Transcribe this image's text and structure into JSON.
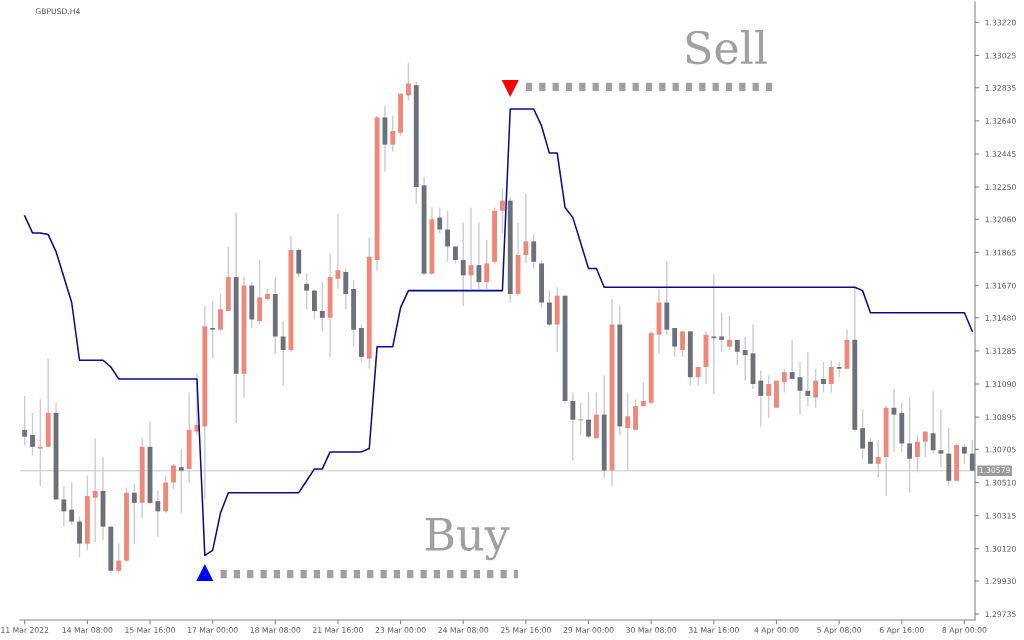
{
  "chart_data": {
    "type": "candlestick",
    "title": "GBPUSD,H4",
    "categories": [
      "11 Mar 2022",
      null,
      null,
      null,
      null,
      null,
      null,
      null,
      "14 Mar 08:00",
      null,
      null,
      null,
      null,
      null,
      null,
      null,
      "15 Mar 16:00",
      null,
      null,
      null,
      null,
      null,
      null,
      null,
      "17 Mar 00:00",
      null,
      null,
      null,
      null,
      null,
      null,
      null,
      "18 Mar 08:00",
      null,
      null,
      null,
      null,
      null,
      null,
      null,
      "21 Mar 16:00",
      null,
      null,
      null,
      null,
      null,
      null,
      null,
      "23 Mar 00:00",
      null,
      null,
      null,
      null,
      null,
      null,
      null,
      "24 Mar 08:00",
      null,
      null,
      null,
      null,
      null,
      null,
      null,
      "25 Mar 16:00",
      null,
      null,
      null,
      null,
      null,
      null,
      null,
      "29 Mar 00:00",
      null,
      null,
      null,
      null,
      null,
      null,
      null,
      "30 Mar 08:00",
      null,
      null,
      null,
      null,
      null,
      null,
      null,
      "31 Mar 16:00",
      null,
      null,
      null,
      null,
      null,
      null,
      null,
      "4 Apr 00:00",
      null,
      null,
      null,
      null,
      null,
      null,
      null,
      "5 Apr 08:00",
      null,
      null,
      null,
      null,
      null,
      null,
      null,
      "6 Apr 16:00",
      null,
      null,
      null,
      null,
      null,
      null,
      null,
      "8 Apr 00:00",
      null
    ],
    "ohlc": [
      [
        1.3082,
        1.3102,
        1.3073,
        1.3078
      ],
      [
        1.3079,
        1.3092,
        1.3067,
        1.3072
      ],
      [
        1.3071,
        1.31,
        1.3049,
        1.3072
      ],
      [
        1.3072,
        1.3124,
        1.3072,
        1.3092
      ],
      [
        1.3092,
        1.3098,
        1.3041,
        1.3041
      ],
      [
        1.3041,
        1.3049,
        1.3025,
        1.3034
      ],
      [
        1.3035,
        1.3051,
        1.3026,
        1.3028
      ],
      [
        1.3028,
        1.3031,
        1.3007,
        1.3015
      ],
      [
        1.3015,
        1.3055,
        1.3011,
        1.3043
      ],
      [
        1.3042,
        1.3077,
        1.3016,
        1.3046
      ],
      [
        1.3046,
        1.3066,
        1.3017,
        1.3025
      ],
      [
        1.3025,
        1.3025,
        1.2998,
        1.2999
      ],
      [
        1.2999,
        1.3015,
        1.2998,
        1.3005
      ],
      [
        1.3005,
        1.3048,
        1.3004,
        1.3045
      ],
      [
        1.3045,
        1.305,
        1.3015,
        1.3039
      ],
      [
        1.3039,
        1.3077,
        1.303,
        1.3072
      ],
      [
        1.3072,
        1.3087,
        1.3038,
        1.3039
      ],
      [
        1.304,
        1.3046,
        1.3019,
        1.3034
      ],
      [
        1.3034,
        1.3055,
        1.3033,
        1.3051
      ],
      [
        1.3051,
        1.3062,
        1.3047,
        1.3061
      ],
      [
        1.306,
        1.3071,
        1.3033,
        1.3058
      ],
      [
        1.3059,
        1.3104,
        1.3051,
        1.3082
      ],
      [
        1.3081,
        1.3115,
        1.3079,
        1.3085
      ],
      [
        1.3084,
        1.3155,
        1.3041,
        1.3143
      ],
      [
        1.3142,
        1.3158,
        1.3124,
        1.3141
      ],
      [
        1.3141,
        1.3162,
        1.314,
        1.3153
      ],
      [
        1.3152,
        1.319,
        1.3152,
        1.3172
      ],
      [
        1.3172,
        1.321,
        1.3086,
        1.3115
      ],
      [
        1.3115,
        1.3172,
        1.3101,
        1.3167
      ],
      [
        1.3167,
        1.3169,
        1.3142,
        1.3147
      ],
      [
        1.3146,
        1.3182,
        1.3144,
        1.316
      ],
      [
        1.3159,
        1.3165,
        1.3158,
        1.3162
      ],
      [
        1.3162,
        1.3172,
        1.3127,
        1.3137
      ],
      [
        1.3137,
        1.3146,
        1.3108,
        1.3129
      ],
      [
        1.3129,
        1.3196,
        1.3128,
        1.3188
      ],
      [
        1.3188,
        1.3189,
        1.3172,
        1.3174
      ],
      [
        1.3168,
        1.3174,
        1.3153,
        1.3164
      ],
      [
        1.3164,
        1.3165,
        1.3147,
        1.3152
      ],
      [
        1.3152,
        1.3169,
        1.314,
        1.3148
      ],
      [
        1.3148,
        1.3186,
        1.3125,
        1.3172
      ],
      [
        1.3171,
        1.3209,
        1.3165,
        1.3176
      ],
      [
        1.3175,
        1.3177,
        1.3153,
        1.3162
      ],
      [
        1.3165,
        1.317,
        1.3131,
        1.3141
      ],
      [
        1.3142,
        1.3144,
        1.3122,
        1.3125
      ],
      [
        1.3124,
        1.3195,
        1.3118,
        1.3184
      ],
      [
        1.3182,
        1.3267,
        1.3176,
        1.3266
      ],
      [
        1.3266,
        1.3273,
        1.3234,
        1.325
      ],
      [
        1.325,
        1.3267,
        1.3246,
        1.3258
      ],
      [
        1.3257,
        1.328,
        1.3255,
        1.328
      ],
      [
        1.3279,
        1.3298,
        1.3276,
        1.3286
      ],
      [
        1.3285,
        1.3287,
        1.3215,
        1.3225
      ],
      [
        1.3226,
        1.3231,
        1.3173,
        1.3174
      ],
      [
        1.3174,
        1.3213,
        1.3173,
        1.3206
      ],
      [
        1.3207,
        1.3213,
        1.3198,
        1.32
      ],
      [
        1.32,
        1.3211,
        1.3181,
        1.319
      ],
      [
        1.319,
        1.319,
        1.318,
        1.3182
      ],
      [
        1.3182,
        1.3204,
        1.3155,
        1.3173
      ],
      [
        1.3173,
        1.3213,
        1.3165,
        1.3179
      ],
      [
        1.3179,
        1.3204,
        1.3165,
        1.3169
      ],
      [
        1.3169,
        1.3194,
        1.3165,
        1.318
      ],
      [
        1.3181,
        1.3213,
        1.318,
        1.3211
      ],
      [
        1.3211,
        1.3224,
        1.3198,
        1.3217
      ],
      [
        1.3217,
        1.3219,
        1.3157,
        1.3162
      ],
      [
        1.3162,
        1.3204,
        1.3161,
        1.3185
      ],
      [
        1.3185,
        1.3221,
        1.318,
        1.3193
      ],
      [
        1.3193,
        1.3197,
        1.3177,
        1.3181
      ],
      [
        1.318,
        1.3182,
        1.3154,
        1.3157
      ],
      [
        1.3157,
        1.3164,
        1.3143,
        1.3144
      ],
      [
        1.3144,
        1.3166,
        1.3128,
        1.3161
      ],
      [
        1.3161,
        1.3161,
        1.3098,
        1.3099
      ],
      [
        1.3099,
        1.3104,
        1.3064,
        1.3088
      ],
      [
        1.30876,
        1.3098,
        1.3079,
        1.30882
      ],
      [
        1.3088,
        1.3104,
        1.3077,
        1.3078
      ],
      [
        1.3077,
        1.3104,
        1.3077,
        1.3091
      ],
      [
        1.3091,
        1.3114,
        1.3054,
        1.3058
      ],
      [
        1.3058,
        1.3159,
        1.3049,
        1.3144
      ],
      [
        1.3144,
        1.3155,
        1.3079,
        1.3084
      ],
      [
        1.3083,
        1.3104,
        1.3058,
        1.309
      ],
      [
        1.3082,
        1.31,
        1.3082,
        1.3096
      ],
      [
        1.3096,
        1.311,
        1.3096,
        1.3099
      ],
      [
        1.3098,
        1.314,
        1.3097,
        1.3139
      ],
      [
        1.3138,
        1.3165,
        1.3127,
        1.3157
      ],
      [
        1.3157,
        1.3181,
        1.3138,
        1.3141
      ],
      [
        1.3142,
        1.3142,
        1.3125,
        1.3131
      ],
      [
        1.3129,
        1.314,
        1.3125,
        1.314
      ],
      [
        1.314,
        1.314,
        1.3108,
        1.3113
      ],
      [
        1.3113,
        1.3119,
        1.3108,
        1.3119
      ],
      [
        1.3119,
        1.314,
        1.3109,
        1.3138
      ],
      [
        1.3137,
        1.3174,
        1.3103,
        1.3136
      ],
      [
        1.3137,
        1.3151,
        1.3128,
        1.3135
      ],
      [
        1.3131,
        1.3149,
        1.3129,
        1.3135
      ],
      [
        1.3135,
        1.3135,
        1.312,
        1.3128
      ],
      [
        1.3129,
        1.3137,
        1.3111,
        1.3126
      ],
      [
        1.3127,
        1.3144,
        1.3106,
        1.3109
      ],
      [
        1.3111,
        1.3117,
        1.3084,
        1.3102
      ],
      [
        1.3102,
        1.3114,
        1.3089,
        1.3109
      ],
      [
        1.3095,
        1.3111,
        1.3095,
        1.3111
      ],
      [
        1.311,
        1.3118,
        1.3104,
        1.3116
      ],
      [
        1.3116,
        1.3135,
        1.3112,
        1.3112
      ],
      [
        1.3113,
        1.3122,
        1.3091,
        1.3105
      ],
      [
        1.3105,
        1.3128,
        1.3096,
        1.3102
      ],
      [
        1.3101,
        1.3118,
        1.3095,
        1.3111
      ],
      [
        1.3112,
        1.3122,
        1.3104,
        1.3109
      ],
      [
        1.3109,
        1.3123,
        1.3104,
        1.3119
      ],
      [
        1.3119,
        1.3122,
        1.3113,
        1.3118
      ],
      [
        1.3118,
        1.3141,
        1.3118,
        1.3135
      ],
      [
        1.3135,
        1.3166,
        1.3081,
        1.3082
      ],
      [
        1.3083,
        1.3094,
        1.3065,
        1.3071
      ],
      [
        1.3075,
        1.3077,
        1.3062,
        1.3062
      ],
      [
        1.3062,
        1.3076,
        1.3054,
        1.3066
      ],
      [
        1.3066,
        1.3096,
        1.3043,
        1.3095
      ],
      [
        1.3095,
        1.3106,
        1.3069,
        1.3091
      ],
      [
        1.3092,
        1.3098,
        1.3069,
        1.3074
      ],
      [
        1.3074,
        1.3101,
        1.3045,
        1.3065
      ],
      [
        1.3066,
        1.3079,
        1.3057,
        1.3075
      ],
      [
        1.3075,
        1.3081,
        1.3066,
        1.3081
      ],
      [
        1.308,
        1.3105,
        1.3068,
        1.307
      ],
      [
        1.307,
        1.3094,
        1.306,
        1.3068
      ],
      [
        1.3068,
        1.3083,
        1.3049,
        1.3052
      ],
      [
        1.3052,
        1.3074,
        1.3052,
        1.3073
      ],
      [
        1.3072,
        1.3074,
        1.3062,
        1.3068
      ],
      [
        1.3068,
        1.3076,
        1.30579,
        1.30579
      ]
    ],
    "colors": [
      "#6c7079",
      "#6c7079",
      "#ef8878",
      "#ef8878",
      "#6c7079",
      "#6c7079",
      "#6c7079",
      "#6c7079",
      "#ef8878",
      "#ef8878",
      "#6c7079",
      "#6c7079",
      "#ef8878",
      "#ef8878",
      "#6c7079",
      "#ef8878",
      "#6c7079",
      "#6c7079",
      "#ef8878",
      "#ef8878",
      "#6c7079",
      "#ef8878",
      "#ef8878",
      "#ef8878",
      "#6c7079",
      "#ef8878",
      "#ef8878",
      "#6c7079",
      "#ef8878",
      "#6c7079",
      "#ef8878",
      "#ef8878",
      "#6c7079",
      "#6c7079",
      "#ef8878",
      "#6c7079",
      "#6c7079",
      "#6c7079",
      "#6c7079",
      "#ef8878",
      "#ef8878",
      "#6c7079",
      "#6c7079",
      "#6c7079",
      "#ef8878",
      "#ef8878",
      "#6c7079",
      "#ef8878",
      "#ef8878",
      "#ef8878",
      "#6c7079",
      "#6c7079",
      "#ef8878",
      "#6c7079",
      "#6c7079",
      "#6c7079",
      "#6c7079",
      "#ef8878",
      "#6c7079",
      "#ef8878",
      "#ef8878",
      "#ef8878",
      "#6c7079",
      "#ef8878",
      "#ef8878",
      "#6c7079",
      "#6c7079",
      "#6c7079",
      "#ef8878",
      "#6c7079",
      "#6c7079",
      "#ef8878",
      "#6c7079",
      "#ef8878",
      "#6c7079",
      "#ef8878",
      "#6c7079",
      "#ef8878",
      "#ef8878",
      "#ef8878",
      "#ef8878",
      "#ef8878",
      "#6c7079",
      "#6c7079",
      "#ef8878",
      "#6c7079",
      "#ef8878",
      "#ef8878",
      "#6c7079",
      "#6c7079",
      "#ef8878",
      "#6c7079",
      "#6c7079",
      "#6c7079",
      "#6c7079",
      "#ef8878",
      "#ef8878",
      "#ef8878",
      "#6c7079",
      "#6c7079",
      "#6c7079",
      "#ef8878",
      "#6c7079",
      "#ef8878",
      "#6c7079",
      "#ef8878",
      "#6c7079",
      "#6c7079",
      "#6c7079",
      "#ef8878",
      "#ef8878",
      "#6c7079",
      "#6c7079",
      "#6c7079",
      "#ef8878",
      "#ef8878",
      "#6c7079",
      "#6c7079",
      "#6c7079",
      "#ef8878",
      "#6c7079",
      "#6c7079"
    ],
    "series": [
      {
        "type": "line",
        "color": "#0a0a8c",
        "line_style": "solid",
        "marker": "none",
        "values": [
          1.3208,
          1.3198,
          1.3198,
          1.3197,
          1.3187,
          1.3172,
          1.3157,
          1.3123,
          1.3123,
          1.3123,
          1.3123,
          1.3119,
          1.3112,
          1.3112,
          1.3112,
          1.3112,
          1.3112,
          1.3112,
          1.3112,
          1.3112,
          1.3112,
          1.3112,
          1.3112,
          1.3008,
          1.3011,
          1.3033,
          1.3045,
          1.3045,
          1.3045,
          1.3045,
          1.3045,
          1.3045,
          1.3045,
          1.3045,
          1.3045,
          1.3045,
          1.3052,
          1.3059,
          1.3059,
          1.3069,
          1.3069,
          1.3069,
          1.3069,
          1.3069,
          1.3071,
          1.3131,
          1.3131,
          1.3131,
          1.3154,
          1.3164,
          1.3164,
          1.3164,
          1.3164,
          1.3164,
          1.3164,
          1.3164,
          1.3164,
          1.3164,
          1.3164,
          1.3164,
          1.3164,
          1.3164,
          1.3271,
          1.3271,
          1.3271,
          1.3271,
          1.3261,
          1.3245,
          1.3245,
          1.3213,
          1.3207,
          1.3192,
          1.3177,
          1.3177,
          1.3166,
          1.3166,
          1.3166,
          1.3166,
          1.3166,
          1.3166,
          1.3166,
          1.3166,
          1.3166,
          1.3166,
          1.3166,
          1.3166,
          1.3166,
          1.3166,
          1.3166,
          1.3166,
          1.3166,
          1.3166,
          1.3166,
          1.3166,
          1.3166,
          1.3166,
          1.3166,
          1.3166,
          1.3166,
          1.3166,
          1.3166,
          1.3166,
          1.3166,
          1.3166,
          1.3166,
          1.3166,
          1.3166,
          1.3164,
          1.3151,
          1.3151,
          1.3151,
          1.3151,
          1.3151,
          1.3151,
          1.3151,
          1.3151,
          1.3151,
          1.3151,
          1.3151,
          1.3151,
          1.3151,
          1.314
        ]
      },
      {
        "type": "line",
        "name": "Buy",
        "color": "#a0a0a0",
        "line_style": "dotted",
        "marker": "none",
        "values": [
          null,
          null,
          null,
          null,
          null,
          null,
          null,
          null,
          null,
          null,
          null,
          null,
          null,
          null,
          null,
          null,
          null,
          null,
          null,
          null,
          null,
          null,
          null,
          null,
          null,
          1.2997,
          1.2997,
          1.2997,
          1.2997,
          1.2997,
          1.2997,
          1.2997,
          1.2997,
          1.2997,
          1.2997,
          1.2997,
          1.2997,
          1.2997,
          1.2997,
          1.2997,
          1.2997,
          1.2997,
          1.2997,
          1.2997,
          1.2997,
          1.2997,
          1.2997,
          1.2997,
          1.2997,
          1.2997,
          1.2997,
          1.2997,
          1.2997,
          1.2997,
          1.2997,
          1.2997,
          1.2997,
          1.2997,
          1.2997,
          1.2997,
          1.2997,
          1.2997,
          1.2997,
          1.2997,
          null,
          null,
          null,
          null,
          null,
          null,
          null,
          null,
          null,
          null,
          null,
          null,
          null,
          null,
          null,
          null,
          null,
          null,
          null,
          null,
          null,
          null,
          null,
          null,
          null,
          null,
          null,
          null,
          null,
          null,
          null,
          null,
          null,
          null,
          null,
          null,
          null,
          null,
          null,
          null,
          null,
          null,
          null,
          null,
          null,
          null,
          null,
          null,
          null,
          null,
          null,
          null,
          null,
          null,
          null,
          null,
          null,
          null
        ]
      },
      {
        "type": "line",
        "name": "Sell",
        "color": "#a0a0a0",
        "line_style": "dotted",
        "marker": "none",
        "values": [
          null,
          null,
          null,
          null,
          null,
          null,
          null,
          null,
          null,
          null,
          null,
          null,
          null,
          null,
          null,
          null,
          null,
          null,
          null,
          null,
          null,
          null,
          null,
          null,
          null,
          null,
          null,
          null,
          null,
          null,
          null,
          null,
          null,
          null,
          null,
          null,
          null,
          null,
          null,
          null,
          null,
          null,
          null,
          null,
          null,
          null,
          null,
          null,
          null,
          null,
          null,
          null,
          null,
          null,
          null,
          null,
          null,
          null,
          null,
          null,
          null,
          null,
          null,
          null,
          1.3284,
          1.3284,
          1.3284,
          1.3284,
          1.3284,
          1.3284,
          1.3284,
          1.3284,
          1.3284,
          1.3284,
          1.3284,
          1.3284,
          1.3284,
          1.3284,
          1.3284,
          1.3284,
          1.3284,
          1.3284,
          1.3284,
          1.3284,
          1.3284,
          1.3284,
          1.3284,
          1.3284,
          1.3284,
          1.3284,
          1.3284,
          1.3284,
          1.3284,
          1.3284,
          1.3284,
          1.3284,
          1.3284,
          null,
          null,
          null,
          null,
          null,
          null,
          null,
          null,
          null,
          null,
          null,
          null,
          null,
          null,
          null,
          null,
          null,
          null,
          null,
          null,
          null,
          null,
          null,
          null,
          null
        ]
      },
      {
        "type": "scatter",
        "color": "#0000ff",
        "marker": "triangle",
        "values": [
          null,
          null,
          null,
          null,
          null,
          null,
          null,
          null,
          null,
          null,
          null,
          null,
          null,
          null,
          null,
          null,
          null,
          null,
          null,
          null,
          null,
          null,
          null,
          1.2998,
          null,
          null,
          null,
          null,
          null,
          null,
          null,
          null,
          null,
          null,
          null,
          null,
          null,
          null,
          null,
          null,
          null,
          null,
          null,
          null,
          null,
          null,
          null,
          null,
          null,
          null,
          null,
          null,
          null,
          null,
          null,
          null,
          null,
          null,
          null,
          null,
          null,
          null,
          null,
          null,
          null,
          null,
          null,
          null,
          null,
          null,
          null,
          null,
          null,
          null,
          null,
          null,
          null,
          null,
          null,
          null,
          null,
          null,
          null,
          null,
          null,
          null,
          null,
          null,
          null,
          null,
          null,
          null,
          null,
          null,
          null,
          null,
          null,
          null,
          null,
          null,
          null,
          null,
          null,
          null,
          null,
          null,
          null,
          null,
          null,
          null,
          null,
          null,
          null,
          null,
          null,
          null,
          null,
          null,
          null,
          null,
          null,
          null
        ]
      },
      {
        "type": "scatter",
        "color": "#ff0000",
        "marker": "triangle_down",
        "values": [
          null,
          null,
          null,
          null,
          null,
          null,
          null,
          null,
          null,
          null,
          null,
          null,
          null,
          null,
          null,
          null,
          null,
          null,
          null,
          null,
          null,
          null,
          null,
          null,
          null,
          null,
          null,
          null,
          null,
          null,
          null,
          null,
          null,
          null,
          null,
          null,
          null,
          null,
          null,
          null,
          null,
          null,
          null,
          null,
          null,
          null,
          null,
          null,
          null,
          null,
          null,
          null,
          null,
          null,
          null,
          null,
          null,
          null,
          null,
          null,
          null,
          null,
          1.3283,
          null,
          null,
          null,
          null,
          null,
          null,
          null,
          null,
          null,
          null,
          null,
          null,
          null,
          null,
          null,
          null,
          null,
          null,
          null,
          null,
          null,
          null,
          null,
          null,
          null,
          null,
          null,
          null,
          null,
          null,
          null,
          null,
          null,
          null,
          null,
          null,
          null,
          null,
          null,
          null,
          null,
          null,
          null,
          null,
          null,
          null,
          null,
          null,
          null,
          null,
          null,
          null,
          null,
          null,
          null,
          null,
          null,
          null,
          null
        ]
      }
    ],
    "ylim": [
      1.297,
      1.3334
    ],
    "yticks": [
      1.29735,
      {
        "value": 1.2993,
        "label": "1.29930"
      },
      {
        "value": 1.3012,
        "label": "1.30120"
      },
      1.30315,
      {
        "value": 1.3051,
        "label": "1.30510"
      },
      1.30705,
      1.30895,
      {
        "value": 1.3109,
        "label": "1.31090"
      },
      1.31285,
      {
        "value": 1.3148,
        "label": "1.31480"
      },
      {
        "value": 1.3167,
        "label": "1.31670"
      },
      1.31865,
      {
        "value": 1.3206,
        "label": "1.32060"
      },
      {
        "value": 1.3225,
        "label": "1.32250"
      },
      1.32445,
      {
        "value": 1.3264,
        "label": "1.32640"
      },
      1.32835,
      1.33025,
      {
        "value": 1.3322,
        "label": "1.33220"
      }
    ],
    "ref_lines": [
      {
        "axis": "y",
        "value": 1.30579,
        "label": "1.30579",
        "color": "#d8dce2",
        "line_style": "solid"
      }
    ],
    "grid": false,
    "legend": false
  }
}
